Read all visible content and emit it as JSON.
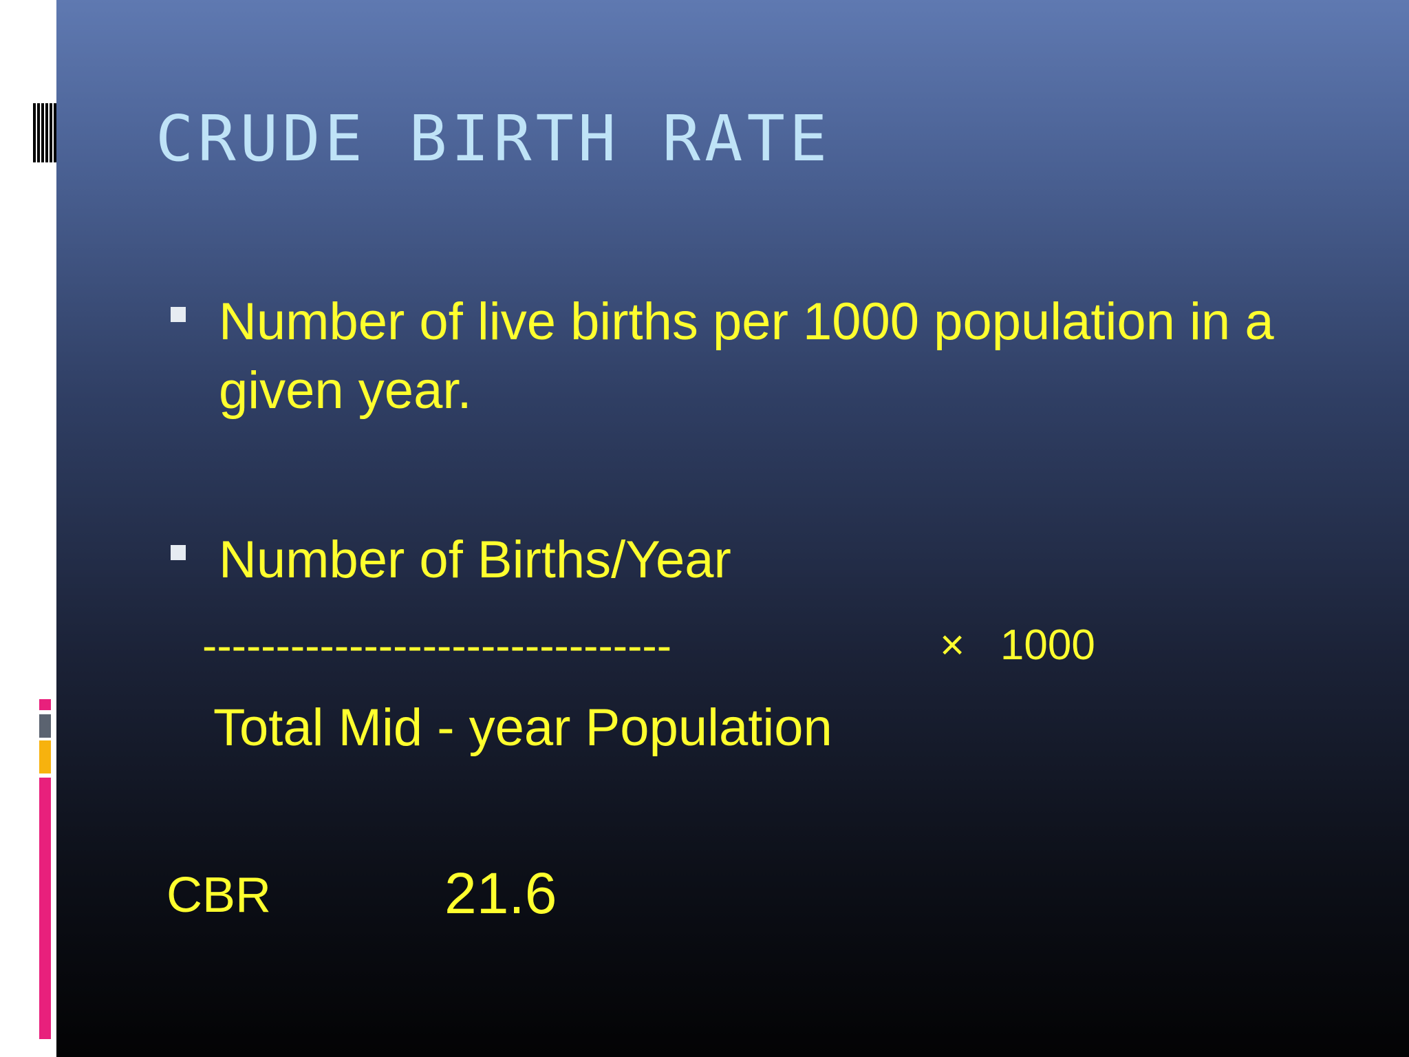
{
  "slide": {
    "title": "CRUDE BIRTH RATE",
    "bullets": [
      {
        "lines": [
          "Number of live births per 1000 population in a",
          "given year."
        ]
      },
      {
        "lines": [
          "Number of Births/Year"
        ]
      }
    ],
    "formula": {
      "divider": "--------------------------------",
      "multiplier": "×   1000",
      "denominator": "Total Mid - year Population"
    },
    "result": {
      "label": "CBR",
      "value": "21.6"
    }
  },
  "colors": {
    "title": "#bfe3f7",
    "body_text": "#ffff2e",
    "background_top": "#5f79b1",
    "background_bottom": "#030304",
    "accent_pink": "#e8207c",
    "accent_orange": "#f7b20e",
    "accent_gray": "#5b6370"
  }
}
